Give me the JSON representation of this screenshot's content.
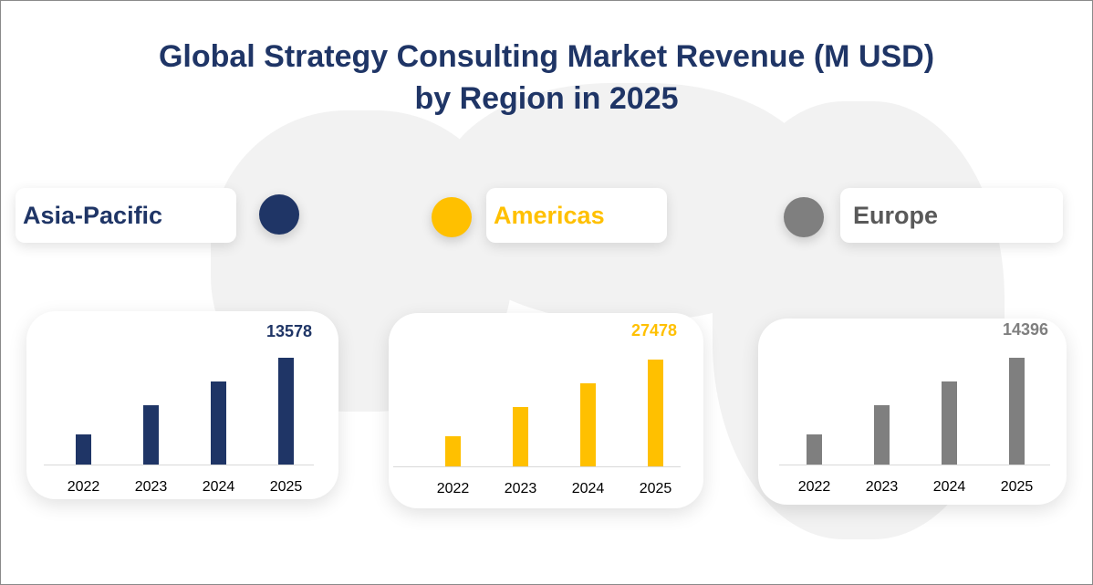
{
  "title_line1": "Global Strategy Consulting Market Revenue (M USD)",
  "title_line2": "by Region in 2025",
  "chart_data": [
    {
      "type": "bar",
      "region": "Asia-Pacific",
      "color": "#1f3566",
      "categories": [
        "2022",
        "2023",
        "2024",
        "2025"
      ],
      "values": [
        3830,
        7540,
        10560,
        13578
      ],
      "data_label": "13578"
    },
    {
      "type": "bar",
      "region": "Americas",
      "color": "#ffc000",
      "categories": [
        "2022",
        "2023",
        "2024",
        "2025"
      ],
      "values": [
        7750,
        15270,
        21370,
        27478
      ],
      "data_label": "27478"
    },
    {
      "type": "bar",
      "region": "Europe",
      "color": "#7f7f7f",
      "categories": [
        "2022",
        "2023",
        "2024",
        "2025"
      ],
      "values": [
        4060,
        8000,
        11200,
        14396
      ],
      "data_label": "14396"
    }
  ]
}
